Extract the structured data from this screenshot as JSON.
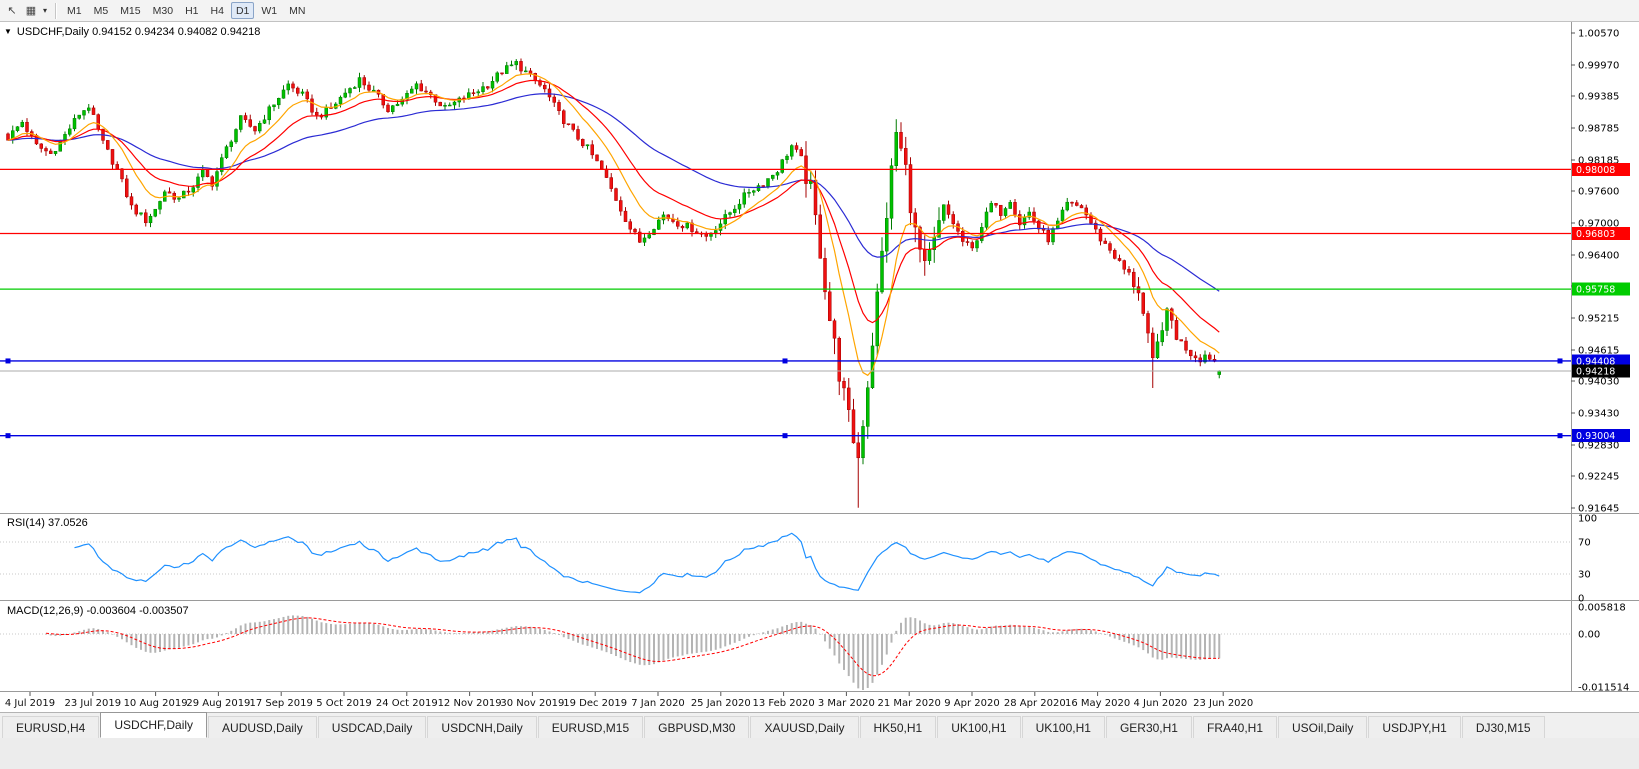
{
  "window": {
    "title": "USDCHF,Daily"
  },
  "toolbar": {
    "icons": [
      {
        "name": "pointer-icon",
        "glyph": "↖"
      },
      {
        "name": "chart-type-icon",
        "glyph": "▦"
      },
      {
        "name": "chevron-down-icon",
        "glyph": "▾",
        "caret": true
      }
    ],
    "timeframes": [
      {
        "label": "M1",
        "active": false
      },
      {
        "label": "M5",
        "active": false
      },
      {
        "label": "M15",
        "active": false
      },
      {
        "label": "M30",
        "active": false
      },
      {
        "label": "H1",
        "active": false
      },
      {
        "label": "H4",
        "active": false
      },
      {
        "label": "D1",
        "active": true
      },
      {
        "label": "W1",
        "active": false
      },
      {
        "label": "MN",
        "active": false
      }
    ]
  },
  "chart": {
    "nav_triangle": "▼",
    "symbol": "USDCHF,Daily",
    "header_text": "USDCHF,Daily 0.94152 0.94234 0.94082 0.94218",
    "ohlc": {
      "open": "0.94152",
      "high": "0.94234",
      "low": "0.94082",
      "close": "0.94218"
    }
  },
  "price_axis": {
    "ticks": [
      {
        "label": "1.00570",
        "value": 1.0057
      },
      {
        "label": "0.99970",
        "value": 0.9997
      },
      {
        "label": "0.99385",
        "value": 0.99385
      },
      {
        "label": "0.98785",
        "value": 0.98785
      },
      {
        "label": "0.98185",
        "value": 0.98185
      },
      {
        "label": "0.97600",
        "value": 0.976
      },
      {
        "label": "0.97000",
        "value": 0.97
      },
      {
        "label": "0.96400",
        "value": 0.964
      },
      {
        "label": "0.95815",
        "value": 0.95815
      },
      {
        "label": "0.95215",
        "value": 0.95215
      },
      {
        "label": "0.94615",
        "value": 0.94615
      },
      {
        "label": "0.94030",
        "value": 0.9403
      },
      {
        "label": "0.93430",
        "value": 0.9343
      },
      {
        "label": "0.92830",
        "value": 0.9283
      },
      {
        "label": "0.92245",
        "value": 0.92245
      },
      {
        "label": "0.91645",
        "value": 0.91645
      }
    ]
  },
  "hlines": [
    {
      "label": "0.98008",
      "value": 0.98008,
      "color": "#FF0000",
      "selected": false
    },
    {
      "label": "0.96803",
      "value": 0.96803,
      "color": "#FF0000",
      "selected": false
    },
    {
      "label": "0.95758",
      "value": 0.95758,
      "color": "#00CC00",
      "selected": false
    },
    {
      "label": "0.94408",
      "value": 0.94408,
      "color": "#0000E0",
      "selected": true
    },
    {
      "label": "0.93004",
      "value": 0.93004,
      "color": "#0000E0",
      "selected": true
    }
  ],
  "current_price": {
    "label": "0.94218",
    "value": 0.94218,
    "line_color": "#ABABAB",
    "tag_color": "#000000"
  },
  "rsi_panel": {
    "label": "RSI(14) 37.0526",
    "value": 37.0526,
    "line_color": "#1E90FF",
    "levels": [
      {
        "label": "100",
        "value": 100
      },
      {
        "label": "70",
        "value": 70
      },
      {
        "label": "30",
        "value": 30
      },
      {
        "label": "0",
        "value": 0
      }
    ]
  },
  "macd_panel": {
    "label": "MACD(12,26,9) -0.003604 -0.003507",
    "macd_value": -0.003604,
    "signal_value": -0.003507,
    "histogram_color": "#B4B4B4",
    "signal_color": "#FF0000",
    "levels": [
      {
        "label": "0.005818",
        "value": 0.005818
      },
      {
        "label": "0.00",
        "value": 0
      },
      {
        "label": "-0.011514",
        "value": -0.011514
      }
    ]
  },
  "date_axis": {
    "labels": [
      "4 Jul 2019",
      "23 Jul 2019",
      "10 Aug 2019",
      "29 Aug 2019",
      "17 Sep 2019",
      "5 Oct 2019",
      "24 Oct 2019",
      "12 Nov 2019",
      "30 Nov 2019",
      "19 Dec 2019",
      "7 Jan 2020",
      "25 Jan 2020",
      "13 Feb 2020",
      "3 Mar 2020",
      "21 Mar 2020",
      "9 Apr 2020",
      "28 Apr 2020",
      "16 May 2020",
      "4 Jun 2020",
      "23 Jun 2020"
    ]
  },
  "tabs": [
    {
      "label": "EURUSD,H4",
      "active": false
    },
    {
      "label": "USDCHF,Daily",
      "active": true
    },
    {
      "label": "AUDUSD,Daily",
      "active": false
    },
    {
      "label": "USDCAD,Daily",
      "active": false
    },
    {
      "label": "USDCNH,Daily",
      "active": false
    },
    {
      "label": "EURUSD,M15",
      "active": false
    },
    {
      "label": "GBPUSD,M30",
      "active": false
    },
    {
      "label": "XAUUSD,Daily",
      "active": false
    },
    {
      "label": "HK50,H1",
      "active": false
    },
    {
      "label": "UK100,H1",
      "active": false
    },
    {
      "label": "UK100,H1",
      "active": false
    },
    {
      "label": "GER30,H1",
      "active": false
    },
    {
      "label": "FRA40,H1",
      "active": false
    },
    {
      "label": "USOil,Daily",
      "active": false
    },
    {
      "label": "USDJPY,H1",
      "active": false
    },
    {
      "label": "DJ30,M15",
      "active": false
    }
  ],
  "colors": {
    "up_fill": "#00C000",
    "up_stroke": "#007A00",
    "down_fill": "#EE1111",
    "down_stroke": "#A50000",
    "ma_fast": "#FFA500",
    "ma_mid": "#FF0000",
    "ma_slow": "#2B2BD4",
    "grid_dotted": "#C8C8C8",
    "axis_line": "#9A9A9A",
    "axis_text": "#000000"
  },
  "chart_data": {
    "type": "candlestick",
    "symbol": "USDCHF",
    "timeframe": "Daily",
    "title": "USDCHF,Daily",
    "price_range": [
      0.91645,
      1.0057
    ],
    "x_range": [
      "4 Jul 2019",
      "23 Jun 2020"
    ],
    "last_ohlc": {
      "open": 0.94152,
      "high": 0.94234,
      "low": 0.94082,
      "close": 0.94218
    },
    "num_candles": 256,
    "horizontal_lines": [
      0.98008,
      0.96803,
      0.95758,
      0.94408,
      0.93004
    ],
    "indicators": {
      "moving_averages": [
        {
          "type": "ema",
          "period": 10,
          "color": "#FFA500"
        },
        {
          "type": "ema",
          "period": 20,
          "color": "#FF0000"
        },
        {
          "type": "ema",
          "period": 50,
          "color": "#2B2BD4"
        }
      ],
      "rsi": {
        "period": 14,
        "last_value": 37.0526,
        "scale": [
          0,
          100
        ],
        "bands": [
          30,
          70
        ]
      },
      "macd": {
        "fast": 12,
        "slow": 26,
        "signal": 9,
        "last_macd": -0.003604,
        "last_signal": -0.003507,
        "scale": [
          -0.011514,
          0.005818
        ]
      }
    },
    "anchors": [
      [
        0,
        0.986
      ],
      [
        3,
        0.989
      ],
      [
        6,
        0.9845
      ],
      [
        9,
        0.983
      ],
      [
        12,
        0.9865
      ],
      [
        15,
        0.9905
      ],
      [
        17,
        0.992
      ],
      [
        20,
        0.985
      ],
      [
        23,
        0.98
      ],
      [
        26,
        0.973
      ],
      [
        29,
        0.9705
      ],
      [
        31,
        0.9725
      ],
      [
        33,
        0.976
      ],
      [
        36,
        0.9745
      ],
      [
        39,
        0.977
      ],
      [
        41,
        0.9795
      ],
      [
        43,
        0.9775
      ],
      [
        46,
        0.984
      ],
      [
        49,
        0.9895
      ],
      [
        52,
        0.9875
      ],
      [
        56,
        0.9925
      ],
      [
        59,
        0.996
      ],
      [
        62,
        0.994
      ],
      [
        65,
        0.99
      ],
      [
        68,
        0.9915
      ],
      [
        71,
        0.9945
      ],
      [
        74,
        0.997
      ],
      [
        77,
        0.9945
      ],
      [
        80,
        0.9915
      ],
      [
        83,
        0.993
      ],
      [
        86,
        0.996
      ],
      [
        89,
        0.994
      ],
      [
        92,
        0.9915
      ],
      [
        95,
        0.993
      ],
      [
        98,
        0.9945
      ],
      [
        101,
        0.996
      ],
      [
        104,
        0.9985
      ],
      [
        107,
        1.0
      ],
      [
        110,
        0.9975
      ],
      [
        113,
        0.995
      ],
      [
        116,
        0.9905
      ],
      [
        119,
        0.987
      ],
      [
        122,
        0.984
      ],
      [
        125,
        0.98
      ],
      [
        128,
        0.9745
      ],
      [
        131,
        0.969
      ],
      [
        133,
        0.9665
      ],
      [
        135,
        0.9685
      ],
      [
        138,
        0.9715
      ],
      [
        141,
        0.97
      ],
      [
        144,
        0.969
      ],
      [
        147,
        0.9675
      ],
      [
        150,
        0.97
      ],
      [
        153,
        0.973
      ],
      [
        156,
        0.976
      ],
      [
        159,
        0.9775
      ],
      [
        162,
        0.98
      ],
      [
        165,
        0.9845
      ],
      [
        167,
        0.982
      ],
      [
        169,
        0.976
      ],
      [
        171,
        0.965
      ],
      [
        173,
        0.952
      ],
      [
        175,
        0.942
      ],
      [
        177,
        0.933
      ],
      [
        179,
        0.926
      ],
      [
        181,
        0.94
      ],
      [
        183,
        0.956
      ],
      [
        185,
        0.972
      ],
      [
        187,
        0.987
      ],
      [
        189,
        0.98
      ],
      [
        191,
        0.968
      ],
      [
        193,
        0.961
      ],
      [
        195,
        0.966
      ],
      [
        197,
        0.973
      ],
      [
        199,
        0.97
      ],
      [
        201,
        0.9665
      ],
      [
        203,
        0.965
      ],
      [
        205,
        0.9695
      ],
      [
        207,
        0.9735
      ],
      [
        209,
        0.972
      ],
      [
        211,
        0.9745
      ],
      [
        213,
        0.97
      ],
      [
        215,
        0.972
      ],
      [
        217,
        0.969
      ],
      [
        219,
        0.967
      ],
      [
        221,
        0.97
      ],
      [
        223,
        0.9735
      ],
      [
        226,
        0.973
      ],
      [
        228,
        0.97
      ],
      [
        230,
        0.967
      ],
      [
        232,
        0.965
      ],
      [
        234,
        0.9625
      ],
      [
        236,
        0.96
      ],
      [
        238,
        0.9575
      ],
      [
        240,
        0.948
      ],
      [
        241,
        0.9435
      ],
      [
        242,
        0.947
      ],
      [
        243,
        0.951
      ],
      [
        244,
        0.9525
      ],
      [
        245,
        0.9515
      ],
      [
        246,
        0.949
      ],
      [
        247,
        0.9475
      ],
      [
        248,
        0.9465
      ],
      [
        249,
        0.9455
      ],
      [
        250,
        0.945
      ],
      [
        251,
        0.9445
      ],
      [
        252,
        0.9452
      ],
      [
        253,
        0.9448
      ],
      [
        254,
        0.944
      ],
      [
        255,
        0.94218
      ]
    ],
    "spike_highs": {
      "107": 1.0008,
      "187": 0.9895
    },
    "spike_lows": {
      "179": 0.9165,
      "241": 0.939
    }
  }
}
